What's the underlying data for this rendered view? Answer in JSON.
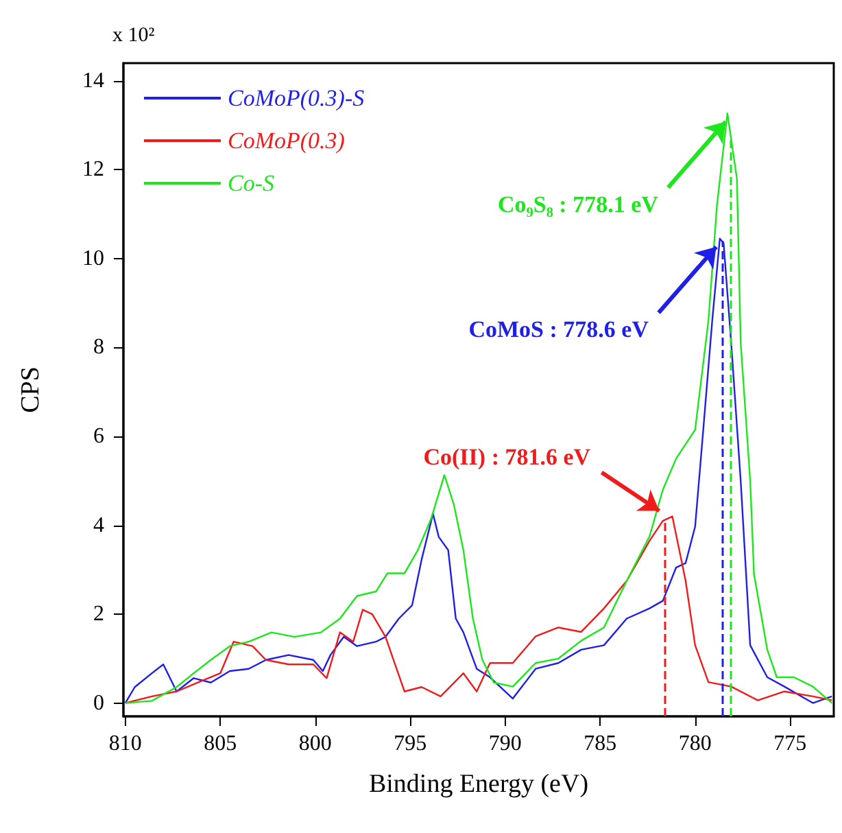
{
  "chart_data": {
    "type": "line",
    "xlabel": "Binding Energy (eV)",
    "ylabel": "CPS",
    "xlim": [
      810.1,
      772.7
    ],
    "xticks": [
      810,
      805,
      800,
      795,
      790,
      785,
      780,
      775
    ],
    "ylim": [
      -0.3,
      14.4
    ],
    "yticks": [
      0,
      2,
      4,
      6,
      8,
      10,
      12,
      14
    ],
    "grid": false,
    "legend": "top left",
    "marker": "none",
    "line_style": "solid",
    "series": [
      {
        "name": "CoMoP(0.3)-S",
        "color": "#1f1fe6",
        "x": [
          810,
          809.5,
          808.6,
          808,
          807.3,
          806.4,
          805.5,
          804.5,
          803.5,
          802.6,
          801.4,
          800.1,
          799.6,
          799.2,
          798.5,
          797.8,
          796.8,
          796.3,
          795.6,
          794.9,
          794.4,
          793.8,
          793.5,
          793,
          792.6,
          792.2,
          791.5,
          790.8,
          789.6,
          788.4,
          787.2,
          786,
          784.8,
          783.6,
          782.4,
          781.7,
          781,
          780.5,
          780,
          779.6,
          779.1,
          778.7,
          778.5,
          778.1,
          777.6,
          777.1,
          776.2,
          775.3,
          773.8,
          772.8
        ],
        "values": [
          0,
          0.36,
          0.67,
          0.87,
          0.26,
          0.56,
          0.46,
          0.72,
          0.77,
          0.97,
          1.08,
          0.97,
          0.72,
          1.08,
          1.49,
          1.28,
          1.38,
          1.49,
          1.9,
          2.2,
          3.23,
          4.26,
          3.74,
          3.44,
          1.9,
          1.59,
          0.77,
          0.58,
          0.1,
          0.77,
          0.9,
          1.2,
          1.3,
          1.9,
          2.13,
          2.3,
          3.05,
          3.15,
          3.97,
          6,
          8.6,
          10.45,
          10.35,
          8.1,
          5,
          1.3,
          0.58,
          0.37,
          0,
          0.15
        ]
      },
      {
        "name": "CoMoP(0.3)",
        "color": "#f01c1c",
        "x": [
          810,
          808.6,
          807.3,
          806.2,
          805,
          804.3,
          803.3,
          802.6,
          801.4,
          800.1,
          799.4,
          798.7,
          798,
          797.5,
          797,
          796.3,
          795.8,
          795.3,
          794.4,
          793.4,
          792.2,
          791.5,
          790.8,
          789.6,
          788.4,
          787.2,
          786,
          784.8,
          783.6,
          782.4,
          781.7,
          781.2,
          780.5,
          780,
          779.3,
          778.1,
          776.7,
          775.3,
          773.8,
          772.8
        ],
        "values": [
          0,
          0.15,
          0.26,
          0.46,
          0.67,
          1.38,
          1.28,
          0.97,
          0.87,
          0.87,
          0.56,
          1.59,
          1.38,
          2.1,
          2,
          1.49,
          0.87,
          0.26,
          0.36,
          0.15,
          0.67,
          0.26,
          0.9,
          0.9,
          1.5,
          1.7,
          1.6,
          2.13,
          2.75,
          3.65,
          4.1,
          4.2,
          2.75,
          1.3,
          0.47,
          0.37,
          0.06,
          0.26,
          0.15,
          0.06
        ]
      },
      {
        "name": "Co-S",
        "color": "#1ee61e",
        "x": [
          810,
          808.6,
          807.3,
          806.4,
          805.5,
          804.5,
          803.5,
          802.3,
          801.1,
          799.7,
          798.7,
          797.8,
          796.8,
          796.2,
          795.3,
          794.6,
          793.9,
          793.2,
          792.7,
          792.2,
          791.7,
          791.2,
          790.6,
          789.6,
          788.4,
          787.2,
          786,
          784.8,
          783.6,
          782.4,
          781.7,
          781,
          780,
          779.3,
          778.85,
          778.3,
          777.8,
          777.6,
          777.1,
          776.9,
          776.2,
          775.7,
          774.8,
          773.8,
          772.8
        ],
        "values": [
          0,
          0.05,
          0.36,
          0.67,
          0.97,
          1.28,
          1.38,
          1.59,
          1.49,
          1.59,
          1.9,
          2.41,
          2.51,
          2.92,
          2.92,
          3.44,
          4.15,
          5.13,
          4.46,
          3.44,
          1.9,
          0.97,
          0.46,
          0.37,
          0.9,
          1,
          1.4,
          1.7,
          2.75,
          3.75,
          4.8,
          5.5,
          6.15,
          8.6,
          11.2,
          13.27,
          11.8,
          8.1,
          5,
          2.9,
          1.2,
          0.58,
          0.58,
          0.37,
          0
        ]
      }
    ],
    "ref_lines": [
      {
        "axis": "x",
        "value": 781.6,
        "color": "#f01c1c",
        "line_style": "dashed"
      },
      {
        "axis": "x",
        "value": 778.6,
        "color": "#1f1fe6",
        "line_style": "dashed"
      },
      {
        "axis": "x",
        "value": 778.1,
        "color": "#1ee61e",
        "line_style": "dashed"
      }
    ],
    "annotations": [
      "x 10²",
      {
        "text": "Co₉S₈ : 778.1 eV",
        "x": 778.1,
        "y": 13.27
      },
      {
        "text": "CoMoS : 778.6 eV",
        "x": 778.6,
        "y": 10.45
      },
      {
        "text": "Co(II) : 781.6 eV",
        "x": 781.6,
        "y": 4.2
      }
    ]
  }
}
